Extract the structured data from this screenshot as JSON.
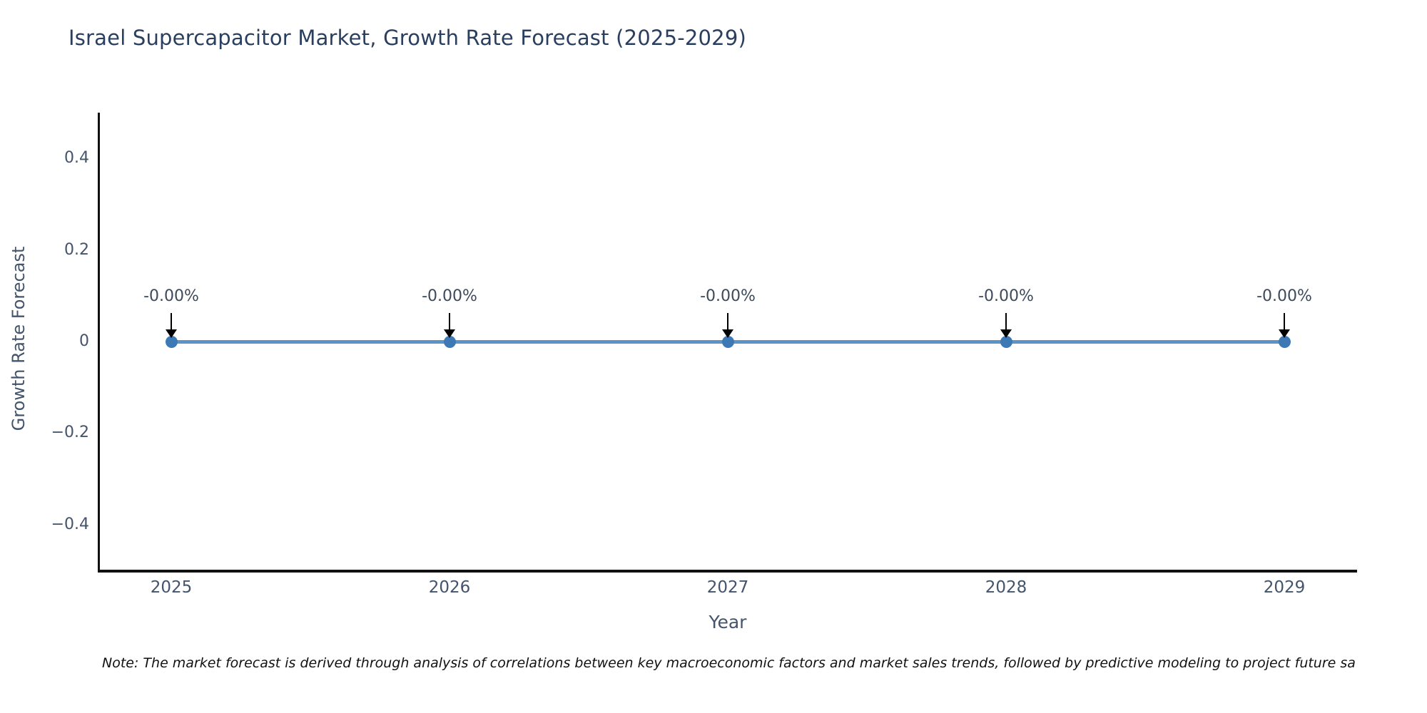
{
  "chart": {
    "note": "Note: The market forecast is derived through analysis of correlations between key macroeconomic factors and market sales trends, followed by predictive modeling to project future sa"
  },
  "chart_data": {
    "type": "line",
    "title": "Israel Supercapacitor Market, Growth Rate Forecast (2025-2029)",
    "xlabel": "Year",
    "ylabel": "Growth Rate Forecast",
    "categories": [
      "2025",
      "2026",
      "2027",
      "2028",
      "2029"
    ],
    "series": [
      {
        "name": "Growth Rate Forecast",
        "values": [
          0,
          0,
          0,
          0,
          0
        ]
      }
    ],
    "point_labels": [
      "-0.00%",
      "-0.00%",
      "-0.00%",
      "-0.00%",
      "-0.00%"
    ],
    "y_ticks": [
      0.4,
      0.2,
      0,
      -0.2,
      -0.4
    ],
    "y_tick_labels": [
      "0.4",
      "0.2",
      "0",
      "−0.2",
      "−0.4"
    ],
    "ylim": [
      -0.5,
      0.5
    ],
    "grid": false,
    "legend_position": "none",
    "annotation_arrows": "down",
    "colors": {
      "line": "#5b94c5",
      "marker": "#3c79b5",
      "axis": "#111111",
      "title_text": "#2a3f5f",
      "tick_text": "#44546a",
      "axis_title_text": "#44546a",
      "annotation_text": "#3d4a5c",
      "arrow": "#000000",
      "note_text": "#111111"
    }
  }
}
